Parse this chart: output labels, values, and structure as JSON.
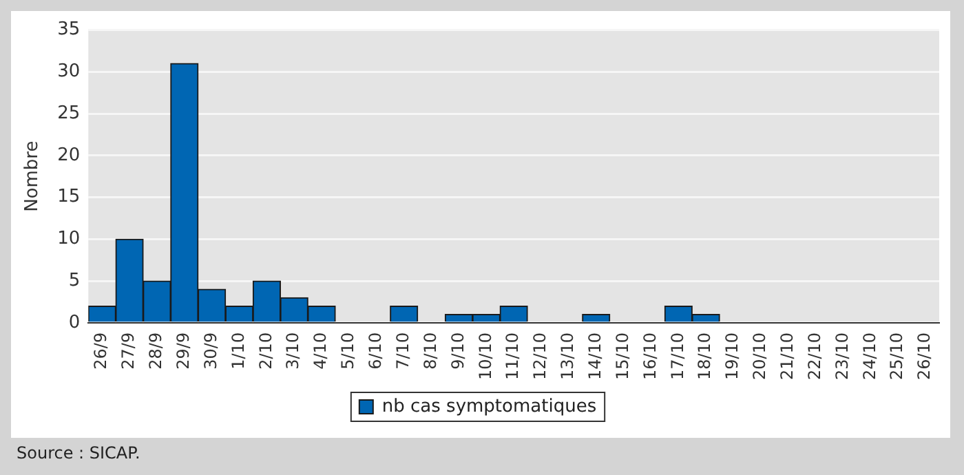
{
  "chart_data": {
    "type": "bar",
    "ylabel": "Nombre",
    "categories": [
      "26/9",
      "27/9",
      "28/9",
      "29/9",
      "30/9",
      "1/10",
      "2/10",
      "3/10",
      "4/10",
      "5/10",
      "6/10",
      "7/10",
      "8/10",
      "9/10",
      "10/10",
      "11/10",
      "12/10",
      "13/10",
      "14/10",
      "15/10",
      "16/10",
      "17/10",
      "18/10",
      "19/10",
      "20/10",
      "21/10",
      "22/10",
      "23/10",
      "24/10",
      "25/10",
      "26/10"
    ],
    "series": [
      {
        "name": "nb cas symptomatiques",
        "color": "#0066b3",
        "values": [
          2,
          10,
          5,
          31,
          4,
          2,
          5,
          3,
          2,
          0,
          0,
          2,
          0,
          1,
          1,
          2,
          0,
          0,
          1,
          0,
          0,
          2,
          1,
          0,
          0,
          0,
          0,
          0,
          0,
          0,
          0
        ]
      }
    ],
    "ylim": [
      0,
      35
    ],
    "yticks": [
      0,
      5,
      10,
      15,
      20,
      25,
      30,
      35
    ],
    "grid": "y",
    "legend": "bottom",
    "annotations": [
      "Source : SICAP."
    ]
  }
}
